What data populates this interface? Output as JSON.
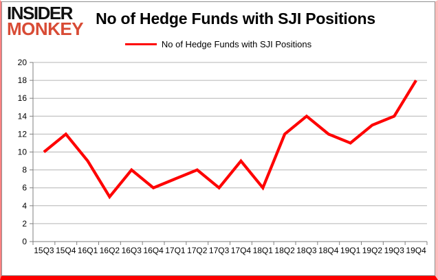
{
  "logo": {
    "line1": "INSIDER",
    "line2": "MONKEY",
    "accent_color": "#d84b35"
  },
  "header": {
    "title": "No of Hedge Funds with SJI Positions"
  },
  "legend": {
    "label": "No of Hedge Funds with SJI Positions"
  },
  "chart_data": {
    "type": "line",
    "title": "No of Hedge Funds with SJI Positions",
    "categories": [
      "15Q3",
      "15Q4",
      "16Q1",
      "16Q2",
      "16Q3",
      "16Q4",
      "17Q1",
      "17Q2",
      "17Q3",
      "17Q4",
      "18Q1",
      "18Q2",
      "18Q3",
      "18Q4",
      "19Q1",
      "19Q2",
      "19Q3",
      "19Q4"
    ],
    "series": [
      {
        "name": "No of Hedge Funds with SJI Positions",
        "color": "#fe0000",
        "values": [
          10,
          12,
          9,
          5,
          8,
          6,
          7,
          8,
          6,
          9,
          6,
          12,
          14,
          12,
          11,
          13,
          14,
          18
        ]
      }
    ],
    "xlabel": "",
    "ylabel": "",
    "ylim": [
      0,
      20
    ],
    "ytick_step": 2,
    "grid": true,
    "legend_position": "top-center",
    "gridline_color": "#b4b4b4",
    "axis_color": "#7f7f7f",
    "label_color": "#000000"
  }
}
